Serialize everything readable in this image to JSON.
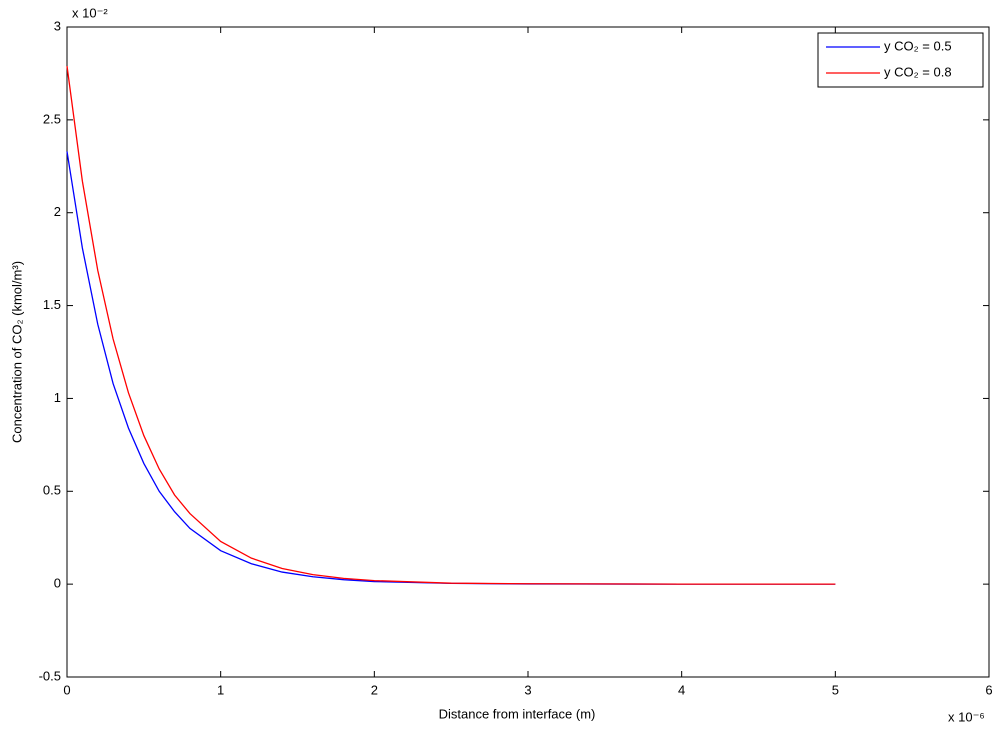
{
  "chart_data": {
    "type": "line",
    "xlabel": "Distance from interface (m)",
    "ylabel": "Concentration of CO₂ (kmol/m³)",
    "x_multiplier": "x 10⁻⁶",
    "y_multiplier": "x 10⁻²",
    "x": [
      0,
      0.1,
      0.2,
      0.3,
      0.4,
      0.5,
      0.6,
      0.7,
      0.8,
      1,
      1.2,
      1.4,
      1.6,
      1.8,
      2,
      2.5,
      3,
      4,
      5
    ],
    "series": [
      {
        "name": "y CO₂ = 0.5",
        "color": "#0000ff",
        "values": [
          2.33,
          1.81,
          1.4,
          1.08,
          0.84,
          0.65,
          0.5,
          0.39,
          0.3,
          0.18,
          0.11,
          0.065,
          0.04,
          0.024,
          0.014,
          0.004,
          0.001,
          0,
          0
        ]
      },
      {
        "name": "y CO₂ = 0.8",
        "color": "#ff0000",
        "values": [
          2.79,
          2.17,
          1.69,
          1.32,
          1.03,
          0.8,
          0.62,
          0.48,
          0.38,
          0.23,
          0.14,
          0.084,
          0.051,
          0.031,
          0.019,
          0.005,
          0.002,
          0,
          0
        ]
      }
    ],
    "xlim": [
      0,
      6
    ],
    "xticks": [
      0,
      1,
      2,
      3,
      4,
      5,
      6
    ],
    "ylim": [
      -0.5,
      3
    ],
    "yticks": [
      -0.5,
      0,
      0.5,
      1,
      1.5,
      2,
      2.5,
      3
    ],
    "legend": "upper right"
  }
}
